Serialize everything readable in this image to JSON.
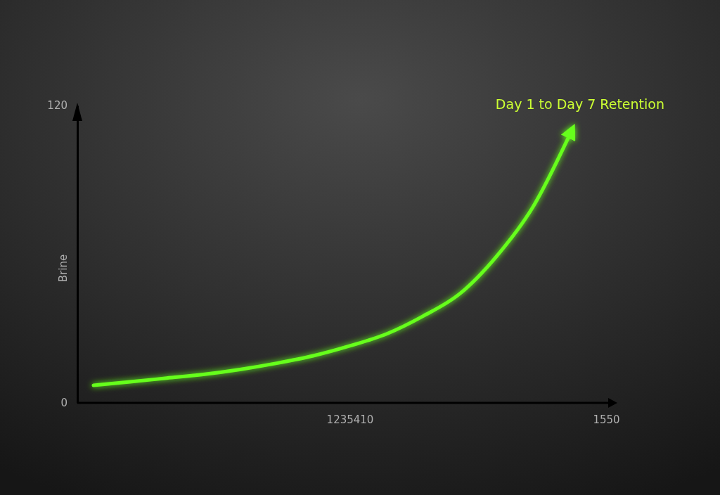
{
  "chart_data": {
    "type": "line",
    "ylabel": "Brine",
    "categories": [
      null,
      null,
      null,
      null,
      null,
      null,
      null,
      "1235410",
      null,
      null,
      null,
      null,
      null,
      null,
      "1550"
    ],
    "series": [
      {
        "name": "Day 1 to Day 7 Retention",
        "color": "#66ff1a",
        "values": [
          7.1,
          8.5,
          10,
          11.5,
          13.5,
          16,
          19,
          23,
          27.8,
          35,
          44,
          59,
          79,
          108,
          null
        ]
      }
    ],
    "ylim": [
      0,
      120
    ],
    "yticks": [
      0,
      120
    ],
    "grid": false,
    "legend": false,
    "marker": "none",
    "line_style": "solid"
  }
}
